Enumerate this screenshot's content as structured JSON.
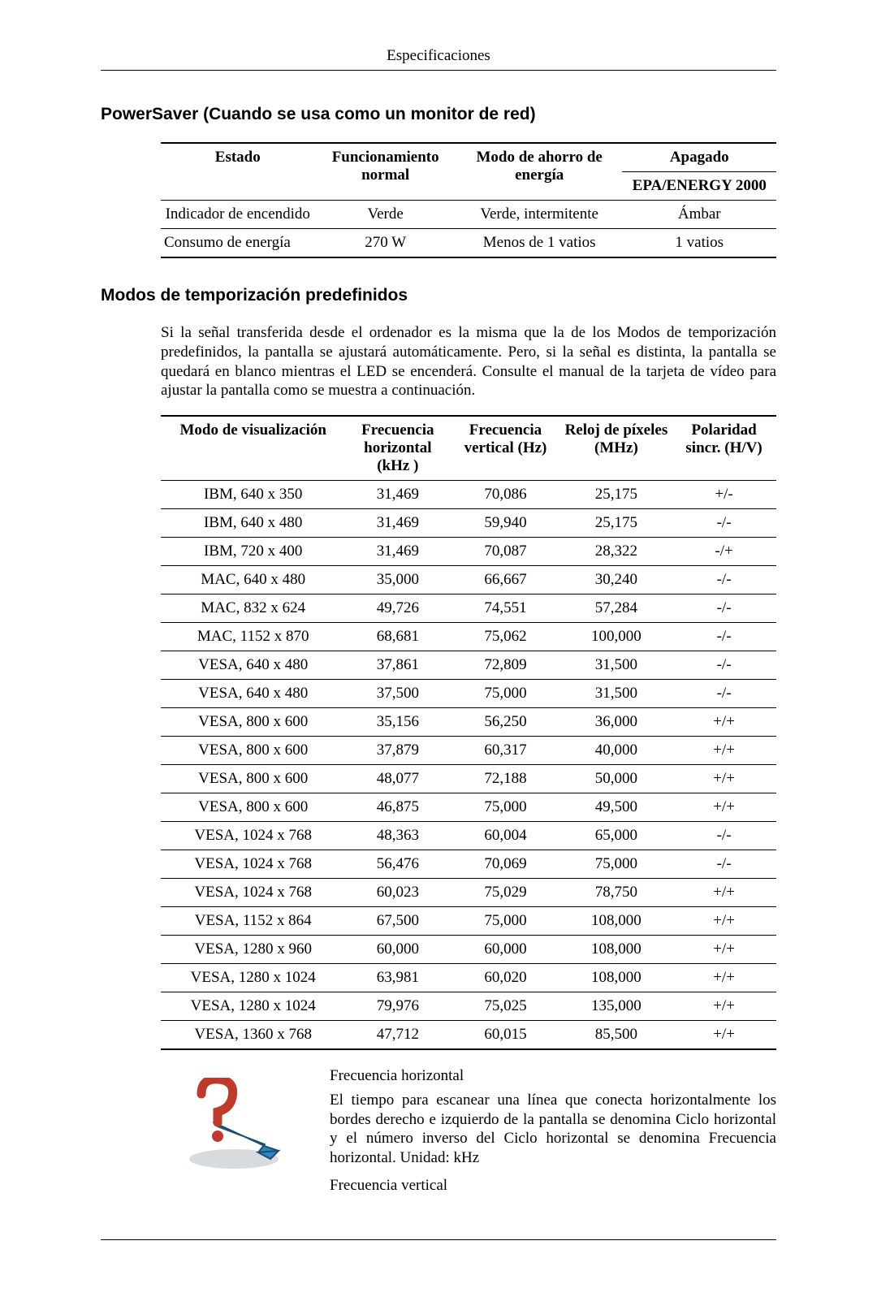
{
  "header": {
    "title": "Especificaciones"
  },
  "section1": {
    "heading": "PowerSaver (Cuando se usa como un monitor de red)",
    "table": {
      "columns": [
        "Estado",
        "Funcionamiento normal",
        "Modo de ahorro de energía",
        "Apagado"
      ],
      "sub_right": "EPA/ENERGY 2000",
      "rows": [
        [
          "Indicador de encendido",
          "Verde",
          "Verde, intermitente",
          "Ámbar"
        ],
        [
          "Consumo de energía",
          "270 W",
          "Menos de 1 vatios",
          "1 vatios"
        ]
      ]
    }
  },
  "section2": {
    "heading": "Modos de temporización predefinidos",
    "intro": "Si la señal transferida desde el ordenador es la misma que la de los Modos de temporización predefinidos, la pantalla se ajustará automáticamente. Pero, si la señal es distinta, la pantalla se quedará en blanco mientras el LED se encenderá. Consulte el manual de la tarjeta de vídeo para ajustar la pantalla como se muestra a continuación.",
    "table": {
      "columns": [
        "Modo de visualización",
        "Frecuencia horizontal (kHz )",
        "Frecuencia vertical (Hz)",
        "Reloj de píxeles (MHz)",
        "Polaridad sincr. (H/V)"
      ],
      "rows": [
        [
          "IBM, 640 x 350",
          "31,469",
          "70,086",
          "25,175",
          "+/-"
        ],
        [
          "IBM, 640 x 480",
          "31,469",
          "59,940",
          "25,175",
          "-/-"
        ],
        [
          "IBM, 720 x 400",
          "31,469",
          "70,087",
          "28,322",
          "-/+"
        ],
        [
          "MAC, 640 x 480",
          "35,000",
          "66,667",
          "30,240",
          "-/-"
        ],
        [
          "MAC, 832 x 624",
          "49,726",
          "74,551",
          "57,284",
          "-/-"
        ],
        [
          "MAC, 1152 x 870",
          "68,681",
          "75,062",
          "100,000",
          "-/-"
        ],
        [
          "VESA, 640 x 480",
          "37,861",
          "72,809",
          "31,500",
          "-/-"
        ],
        [
          "VESA, 640 x 480",
          "37,500",
          "75,000",
          "31,500",
          "-/-"
        ],
        [
          "VESA, 800 x 600",
          "35,156",
          "56,250",
          "36,000",
          "+/+"
        ],
        [
          "VESA, 800 x 600",
          "37,879",
          "60,317",
          "40,000",
          "+/+"
        ],
        [
          "VESA, 800 x 600",
          "48,077",
          "72,188",
          "50,000",
          "+/+"
        ],
        [
          "VESA, 800 x 600",
          "46,875",
          "75,000",
          "49,500",
          "+/+"
        ],
        [
          "VESA, 1024 x 768",
          "48,363",
          "60,004",
          "65,000",
          "-/-"
        ],
        [
          "VESA, 1024 x 768",
          "56,476",
          "70,069",
          "75,000",
          "-/-"
        ],
        [
          "VESA, 1024 x 768",
          "60,023",
          "75,029",
          "78,750",
          "+/+"
        ],
        [
          "VESA, 1152 x 864",
          "67,500",
          "75,000",
          "108,000",
          "+/+"
        ],
        [
          "VESA, 1280 x 960",
          "60,000",
          "60,000",
          "108,000",
          "+/+"
        ],
        [
          "VESA, 1280 x 1024",
          "63,981",
          "60,020",
          "108,000",
          "+/+"
        ],
        [
          "VESA, 1280 x 1024",
          "79,976",
          "75,025",
          "135,000",
          "+/+"
        ],
        [
          "VESA, 1360 x 768",
          "47,712",
          "60,015",
          "85,500",
          "+/+"
        ]
      ]
    }
  },
  "note": {
    "t1": "Frecuencia horizontal",
    "b1": "El tiempo para escanear una línea que conecta horizontalmente los bordes derecho e izquierdo de la pantalla se denomina Ciclo horizontal y el número inverso del Ciclo horizontal se denomina Frecuencia horizontal. Unidad: kHz",
    "t2": "Frecuencia vertical"
  },
  "icon": {
    "q_color": "#c0392b",
    "arrow_color": "#2e86c1",
    "shadow_color": "#d7dbdd"
  }
}
